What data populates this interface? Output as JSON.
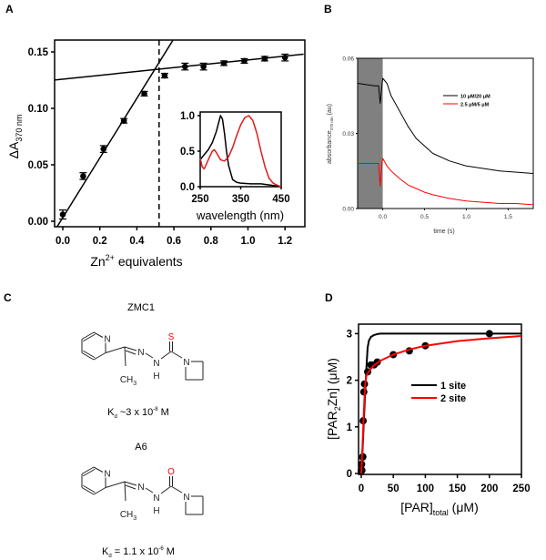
{
  "panels": {
    "a": "A",
    "b": "B",
    "c": "C",
    "d": "D"
  },
  "chart_data": [
    {
      "id": "A-main",
      "type": "scatter",
      "xlabel": {
        "main": "Zn",
        "sup": "2+",
        "rest": " equivalents"
      },
      "ylabel": {
        "main": "ΔA",
        "sub": "370 nm"
      },
      "xlim": [
        -0.05,
        1.3
      ],
      "ylim": [
        -0.004,
        0.16
      ],
      "xticks": [
        "0.0",
        "0.2",
        "0.4",
        "0.6",
        "0.8",
        "1.0",
        "1.2"
      ],
      "yticks": [
        "0.00",
        "0.05",
        "0.10",
        "0.15"
      ],
      "points": {
        "x": [
          0.0,
          0.11,
          0.22,
          0.33,
          0.44,
          0.55,
          0.66,
          0.76,
          0.87,
          0.98,
          1.09,
          1.2
        ],
        "y": [
          0.006,
          0.04,
          0.064,
          0.089,
          0.113,
          0.129,
          0.137,
          0.137,
          0.14,
          0.142,
          0.144,
          0.145
        ],
        "error": [
          0.004,
          0.003,
          0.003,
          0.002,
          0.002,
          0.002,
          0.003,
          0.003,
          0.002,
          0.002,
          0.002,
          0.003
        ]
      },
      "fit_lines": [
        {
          "x": [
            -0.05,
            0.65
          ],
          "y": [
            -0.01,
            0.175
          ]
        },
        {
          "x": [
            -0.05,
            1.3
          ],
          "y": [
            0.125,
            0.148
          ]
        }
      ],
      "dashed_vline_x": 0.52
    },
    {
      "id": "A-inset",
      "type": "line",
      "xlabel": "wavelength (nm)",
      "xlim": [
        250,
        450
      ],
      "ylim": [
        0,
        1.05
      ],
      "xticks": [
        "250",
        "350",
        "450"
      ],
      "yticks": [
        "0.0",
        "0.5",
        "1.0"
      ],
      "series": [
        {
          "color": "#000000",
          "x": [
            250,
            260,
            270,
            280,
            290,
            300,
            305,
            310,
            315,
            320,
            330,
            340,
            350,
            375,
            400,
            425,
            450
          ],
          "y": [
            0.38,
            0.45,
            0.52,
            0.62,
            0.78,
            1.0,
            0.95,
            0.75,
            0.5,
            0.3,
            0.1,
            0.06,
            0.05,
            0.04,
            0.04,
            0.02,
            0.0
          ]
        },
        {
          "color": "#e31a1c",
          "x": [
            250,
            255,
            260,
            270,
            280,
            285,
            290,
            300,
            310,
            320,
            330,
            340,
            350,
            360,
            370,
            380,
            390,
            400,
            410,
            420,
            430,
            440,
            450
          ],
          "y": [
            0.4,
            0.28,
            0.25,
            0.38,
            0.5,
            0.52,
            0.48,
            0.38,
            0.36,
            0.42,
            0.55,
            0.72,
            0.87,
            0.97,
            1.0,
            0.93,
            0.75,
            0.5,
            0.28,
            0.12,
            0.05,
            0.02,
            0.0
          ]
        }
      ]
    },
    {
      "id": "B",
      "type": "line",
      "xlabel": "time (s)",
      "ylabel": {
        "main": "absorbance",
        "sub": "370 nm",
        "rest": " (au)"
      },
      "xlim": [
        -0.3,
        1.8
      ],
      "ylim": [
        0,
        0.06
      ],
      "xticks": [
        "0.0",
        "0.5",
        "1.0",
        "1.5"
      ],
      "yticks": [
        "0.00",
        "0.03",
        "0.06"
      ],
      "shaded_region_x": [
        -0.3,
        0.0
      ],
      "shade_color": "#808080",
      "legend": "right",
      "series": [
        {
          "name": "10 μM/20 μM",
          "color": "#000000",
          "x": [
            -0.3,
            -0.2,
            -0.1,
            -0.05,
            -0.03,
            -0.01,
            0,
            0.05,
            0.1,
            0.2,
            0.3,
            0.4,
            0.5,
            0.6,
            0.8,
            1.0,
            1.2,
            1.4,
            1.6,
            1.8
          ],
          "y": [
            0.05,
            0.0495,
            0.049,
            0.049,
            0.042,
            0.049,
            0.052,
            0.05,
            0.045,
            0.039,
            0.033,
            0.028,
            0.025,
            0.022,
            0.019,
            0.017,
            0.016,
            0.015,
            0.0145,
            0.014
          ]
        },
        {
          "name": "2.5 μM/5 μM",
          "color": "#ff0000",
          "x": [
            -0.3,
            -0.2,
            -0.1,
            -0.05,
            -0.03,
            -0.01,
            0,
            0.05,
            0.1,
            0.2,
            0.3,
            0.4,
            0.5,
            0.6,
            0.8,
            1.0,
            1.2,
            1.4,
            1.6,
            1.8
          ],
          "y": [
            0.018,
            0.018,
            0.018,
            0.018,
            0.009,
            0.018,
            0.02,
            0.017,
            0.015,
            0.012,
            0.0095,
            0.008,
            0.0065,
            0.0055,
            0.004,
            0.003,
            0.0025,
            0.002,
            0.002,
            0.0015
          ]
        }
      ]
    },
    {
      "id": "D",
      "type": "scatter",
      "xlabel": {
        "main": "[PAR]",
        "sub": "total",
        "rest": " (μM)"
      },
      "ylabel": {
        "main": "[PAR",
        "sub": "2",
        "rest": "Zn] (μM)"
      },
      "xlim": [
        -5,
        250
      ],
      "ylim": [
        0,
        3.2
      ],
      "xticks": [
        "0",
        "50",
        "100",
        "150",
        "200",
        "250"
      ],
      "yticks": [
        "0",
        "1",
        "2",
        "3"
      ],
      "legend": "center",
      "points": {
        "x": [
          0,
          0.5,
          1,
          2,
          2.5,
          3,
          4,
          5,
          10,
          15,
          20,
          25,
          50,
          75,
          100,
          200
        ],
        "y": [
          0.05,
          0.2,
          0.07,
          0.35,
          0.36,
          1.13,
          1.75,
          1.92,
          2.18,
          2.33,
          2.33,
          2.39,
          2.55,
          2.63,
          2.74,
          3.0
        ]
      },
      "series": [
        {
          "name": "1 site",
          "color": "#000000",
          "x": [
            0,
            2,
            4,
            6,
            8,
            10,
            12,
            15,
            20,
            25,
            30,
            50,
            100,
            250
          ],
          "y": [
            0,
            0.5,
            1.1,
            1.7,
            2.25,
            2.7,
            2.85,
            2.93,
            2.97,
            2.99,
            3,
            3,
            3,
            3
          ]
        },
        {
          "name": "2 site",
          "color": "#ff0000",
          "x": [
            0,
            2,
            4,
            6,
            8,
            10,
            15,
            20,
            30,
            50,
            75,
            100,
            150,
            200,
            250
          ],
          "y": [
            0,
            0.6,
            1.3,
            1.9,
            2.1,
            2.15,
            2.25,
            2.32,
            2.42,
            2.55,
            2.66,
            2.74,
            2.84,
            2.9,
            2.95
          ]
        }
      ]
    }
  ],
  "compounds": [
    {
      "name": "ZMC1",
      "hetero": "S",
      "hetero_color": "#ff0000",
      "kd": {
        "k": "K",
        "sub": "d",
        "mid": " ~3 x 10",
        "sup": "-8",
        "unit": " M"
      }
    },
    {
      "name": "A6",
      "hetero": "O",
      "hetero_color": "#ff0000",
      "kd": {
        "k": "K",
        "sub": "d",
        "mid": " = 1.1 x 10",
        "sup": "-6",
        "unit": " M"
      }
    }
  ],
  "atoms": {
    "n": "N",
    "h": "H",
    "ch": "CH",
    "three": "3"
  }
}
